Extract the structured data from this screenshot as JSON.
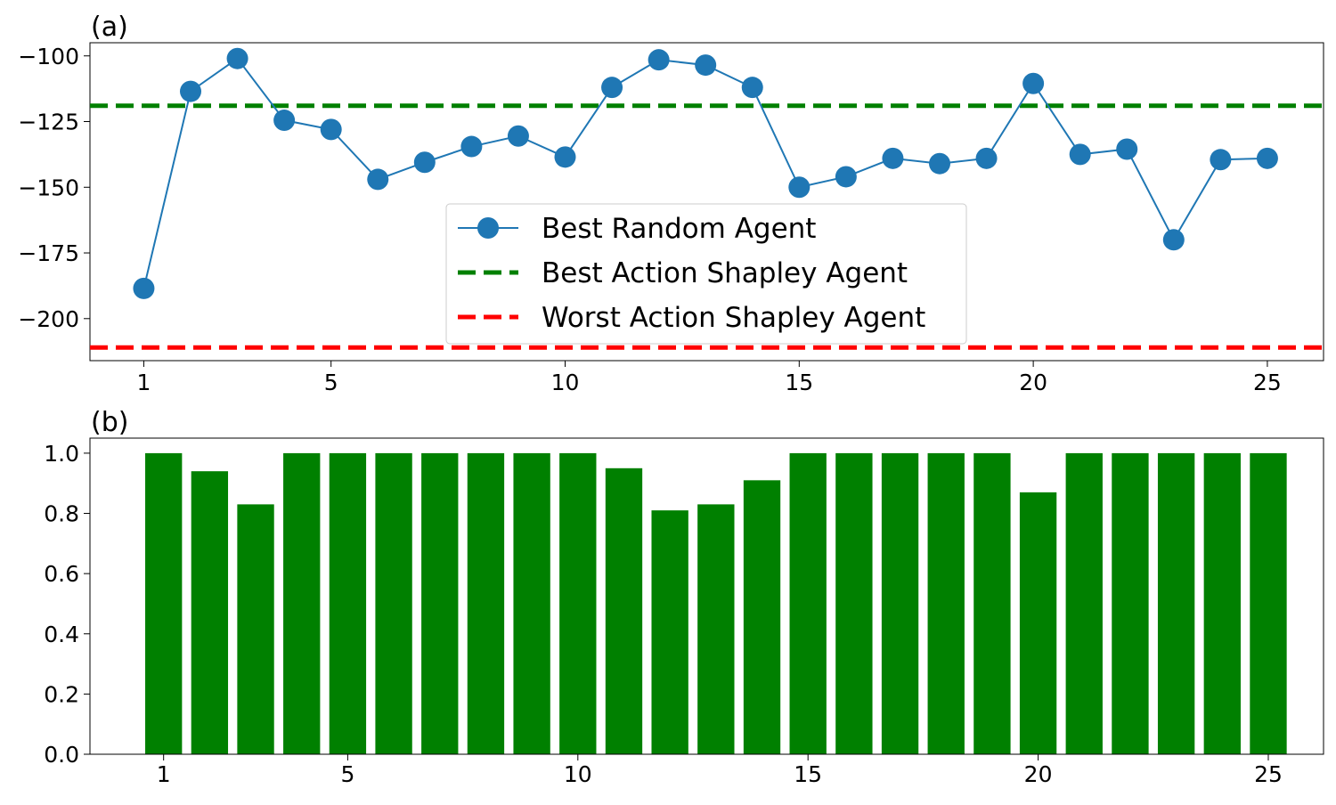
{
  "chart_data": [
    {
      "type": "line",
      "panel_label": "(a)",
      "x": [
        1,
        2,
        3,
        4,
        5,
        6,
        7,
        8,
        9,
        10,
        11,
        12,
        13,
        14,
        15,
        16,
        17,
        18,
        19,
        20,
        21,
        22,
        23,
        24,
        25
      ],
      "x_ticks": [
        1,
        5,
        10,
        15,
        20,
        25
      ],
      "y_ticks": [
        -100,
        -125,
        -150,
        -175,
        -200
      ],
      "ylim": [
        -216,
        -95
      ],
      "xlim": [
        -0.15,
        26.2
      ],
      "series": [
        {
          "name": "Best Random Agent",
          "color": "#1f77b4",
          "marker": "circle",
          "values": [
            -188.5,
            -113.5,
            -101,
            -124.5,
            -128,
            -147,
            -140.5,
            -134.5,
            -130.5,
            -138.5,
            -112,
            -101.5,
            -103.5,
            -112,
            -150,
            -146,
            -139,
            -141,
            -139,
            -110.5,
            -137.5,
            -135.5,
            -170,
            -139.5,
            -139
          ]
        }
      ],
      "reference_lines": [
        {
          "name": "Best Action Shapley Agent",
          "value": -119,
          "color": "#008000",
          "style": "dashed"
        },
        {
          "name": "Worst Action Shapley Agent",
          "value": -211,
          "color": "#ff0000",
          "style": "dashed"
        }
      ],
      "legend": {
        "placement": "center-bottom"
      },
      "grid": false
    },
    {
      "type": "bar",
      "panel_label": "(b)",
      "categories": [
        1,
        2,
        3,
        4,
        5,
        6,
        7,
        8,
        9,
        10,
        11,
        12,
        13,
        14,
        15,
        16,
        17,
        18,
        19,
        20,
        21,
        22,
        23,
        24,
        25
      ],
      "values": [
        1.0,
        0.94,
        0.83,
        1.0,
        1.0,
        1.0,
        1.0,
        1.0,
        1.0,
        1.0,
        0.95,
        0.81,
        0.83,
        0.91,
        1.0,
        1.0,
        1.0,
        1.0,
        1.0,
        0.87,
        1.0,
        1.0,
        1.0,
        1.0,
        1.0
      ],
      "x_ticks": [
        1,
        5,
        10,
        15,
        20,
        25
      ],
      "y_ticks": [
        "0.0",
        "0.2",
        "0.4",
        "0.6",
        "0.8",
        "1.0"
      ],
      "ylim": [
        0,
        1.05
      ],
      "xlim": [
        -0.6,
        26.2
      ],
      "color": "#008000",
      "grid": false
    }
  ]
}
